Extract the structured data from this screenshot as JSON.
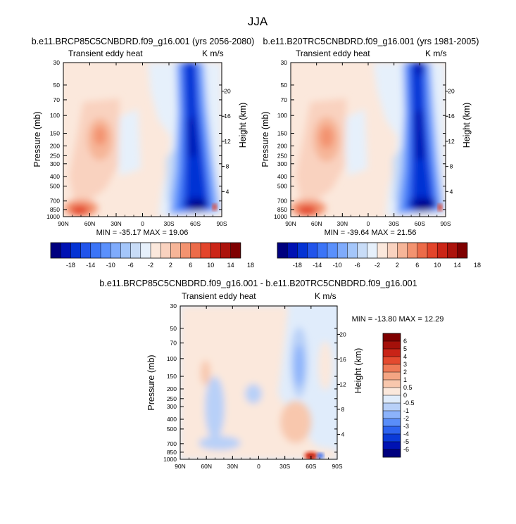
{
  "figure_title": "JJA",
  "colors": {
    "neg": [
      "#00007f",
      "#0012b3",
      "#0433d4",
      "#2154eb",
      "#3b74f7",
      "#5a90fc",
      "#7fabfc",
      "#a4c6fa",
      "#c8dcf7",
      "#e6f0fb"
    ],
    "pos": [
      "#fbe8dc",
      "#f9d2bf",
      "#f6b598",
      "#f39370",
      "#ec6b49",
      "#e3452b",
      "#cb2517",
      "#ac130c",
      "#7f0000"
    ],
    "diff": [
      "#00007f",
      "#0012b3",
      "#0a3ad8",
      "#2d63ef",
      "#5a8ef9",
      "#8cb3fb",
      "#b8d0f8",
      "#e0ecfb",
      "#fbe8dc",
      "#f8c7ad",
      "#f4a583",
      "#ef7a57",
      "#e44a2f",
      "#c92417",
      "#a4100a",
      "#7f0000"
    ]
  },
  "chart_data": [
    {
      "type": "heatmap",
      "title": "b.e11.BRCP85C5CNBDRD.f09_g16.001 (yrs 2056-2080)",
      "left_string": "Transient eddy heat",
      "right_string": "K m/s",
      "ylabel": "Pressure (mb)",
      "ylabel_right": "Height (km)",
      "x_ticks": [
        "90N",
        "60N",
        "30N",
        "0",
        "30S",
        "60S",
        "90S"
      ],
      "y_ticks": [
        "30",
        "50",
        "70",
        "100",
        "150",
        "200",
        "250",
        "300",
        "400",
        "500",
        "700",
        "850",
        "1000"
      ],
      "height_ticks": [
        "20",
        "16",
        "12",
        "8",
        "4"
      ],
      "min_max": "MIN = -35.17  MAX = 19.06",
      "colorbar_labels": [
        "-18",
        "-14",
        "-10",
        "-6",
        "-2",
        "2",
        "6",
        "10",
        "14",
        "18"
      ],
      "ylim": [
        30,
        1000
      ],
      "features": {
        "negative_band": {
          "lat": -55,
          "min": -35.17
        },
        "positive_lobe_upper": {
          "lat": 55,
          "pressure": 200
        },
        "positive_lobe_lower": {
          "lat": 72,
          "pressure": 900,
          "max": 19.06
        }
      }
    },
    {
      "type": "heatmap",
      "title": "b.e11.B20TRC5CNBDRD.f09_g16.001 (yrs 1981-2005)",
      "left_string": "Transient eddy heat",
      "right_string": "K m/s",
      "ylabel": "Pressure (mb)",
      "ylabel_right": "Height (km)",
      "x_ticks": [
        "90N",
        "60N",
        "30N",
        "0",
        "30S",
        "60S",
        "90S"
      ],
      "y_ticks": [
        "30",
        "50",
        "70",
        "100",
        "150",
        "200",
        "250",
        "300",
        "400",
        "500",
        "700",
        "850",
        "1000"
      ],
      "height_ticks": [
        "20",
        "16",
        "12",
        "8",
        "4"
      ],
      "min_max": "MIN = -39.64  MAX = 21.56",
      "colorbar_labels": [
        "-18",
        "-14",
        "-10",
        "-6",
        "-2",
        "2",
        "6",
        "10",
        "14",
        "18"
      ],
      "ylim": [
        30,
        1000
      ]
    },
    {
      "type": "heatmap",
      "title": "b.e11.BRCP85C5CNBDRD.f09_g16.001 - b.e11.B20TRC5CNBDRD.f09_g16.001",
      "left_string": "Transient eddy heat",
      "right_string": "K m/s",
      "ylabel": "Pressure (mb)",
      "ylabel_right": "Height (km)",
      "x_ticks": [
        "90N",
        "60N",
        "30N",
        "0",
        "30S",
        "60S",
        "90S"
      ],
      "y_ticks": [
        "30",
        "50",
        "70",
        "100",
        "150",
        "200",
        "250",
        "300",
        "400",
        "500",
        "700",
        "850",
        "1000"
      ],
      "height_ticks": [
        "20",
        "16",
        "12",
        "8",
        "4"
      ],
      "min_max": "MIN = -13.80  MAX =  12.29",
      "colorbar_labels": [
        "6",
        "5",
        "4",
        "3",
        "2",
        "1",
        "0.5",
        "0",
        "-0.5",
        "-1",
        "-2",
        "-3",
        "-4",
        "-5",
        "-6"
      ],
      "ylim": [
        30,
        1000
      ]
    }
  ]
}
